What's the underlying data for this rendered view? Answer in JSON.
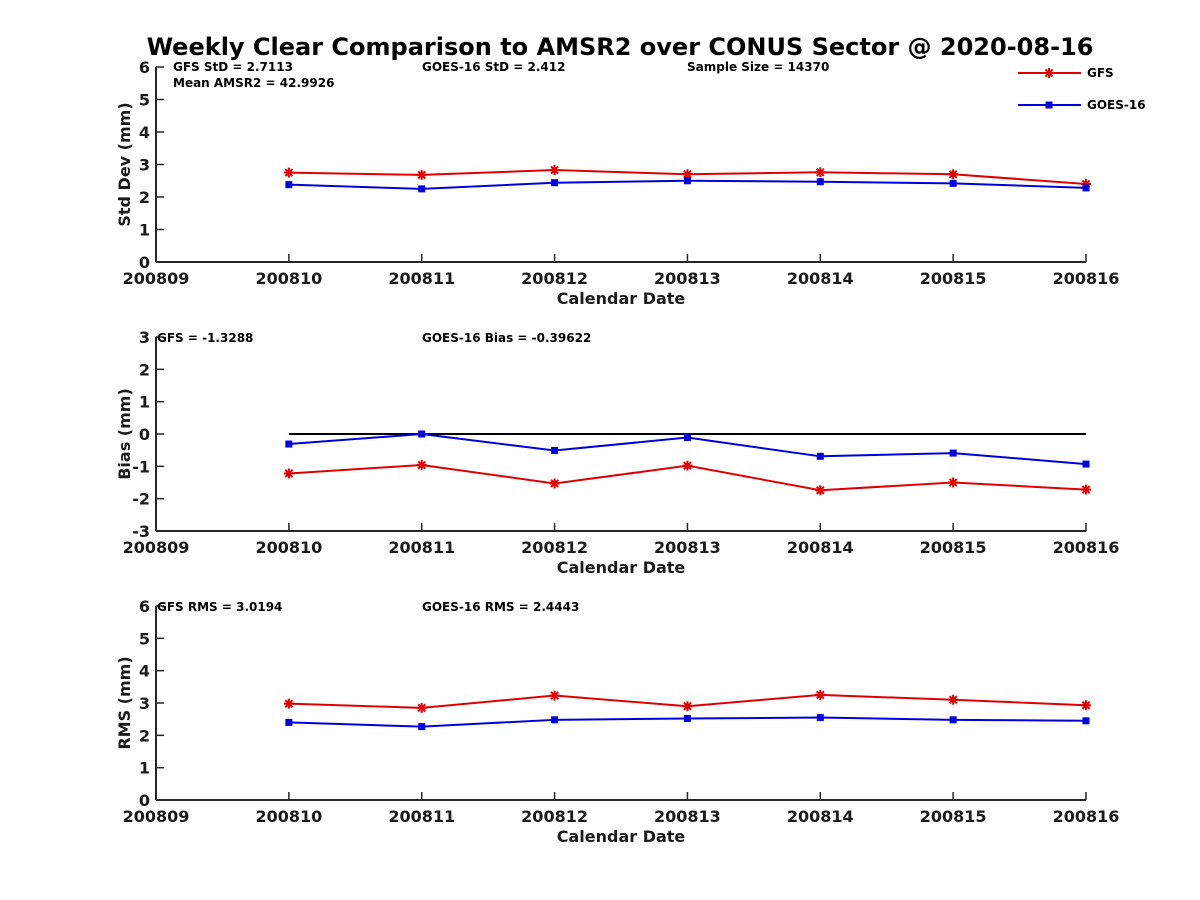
{
  "figure_title": "Weekly Clear Comparison to AMSR2 over CONUS Sector @ 2020-08-16",
  "legend": {
    "entries": [
      {
        "name": "GFS",
        "color": "#e00000",
        "marker": "asterisk"
      },
      {
        "name": "GOES-16",
        "color": "#0000dd",
        "marker": "square"
      }
    ],
    "placement": "top-right"
  },
  "chart_data": [
    {
      "type": "line",
      "ylabel": "Std Dev (mm)",
      "xlabel": "Calendar Date",
      "ylim": [
        0,
        6
      ],
      "yticks": [
        "0",
        "1",
        "2",
        "3",
        "4",
        "5",
        "6"
      ],
      "x_categories": [
        "200809",
        "200810",
        "200811",
        "200812",
        "200813",
        "200814",
        "200815",
        "200816"
      ],
      "annotations": [
        "GFS StD = 2.7113",
        "GOES-16 StD = 2.412",
        "Sample Size = 14370",
        "Mean AMSR2 = 42.9926"
      ],
      "series": [
        {
          "name": "GFS",
          "color": "#e00000",
          "marker": "asterisk",
          "x": [
            "200810",
            "200811",
            "200812",
            "200813",
            "200814",
            "200815",
            "200816"
          ],
          "values": [
            2.75,
            2.68,
            2.83,
            2.7,
            2.76,
            2.7,
            2.4
          ]
        },
        {
          "name": "GOES-16",
          "color": "#0000dd",
          "marker": "square",
          "x": [
            "200810",
            "200811",
            "200812",
            "200813",
            "200814",
            "200815",
            "200816"
          ],
          "values": [
            2.38,
            2.25,
            2.44,
            2.5,
            2.47,
            2.42,
            2.28
          ]
        }
      ]
    },
    {
      "type": "line",
      "ylabel": "Bias (mm)",
      "xlabel": "Calendar Date",
      "ylim": [
        -3,
        3
      ],
      "yticks": [
        "-3",
        "-2",
        "-1",
        "0",
        "1",
        "2",
        "3"
      ],
      "x_categories": [
        "200809",
        "200810",
        "200811",
        "200812",
        "200813",
        "200814",
        "200815",
        "200816"
      ],
      "annotations": [
        "GFS = -1.3288",
        "GOES-16 Bias  = -0.39622"
      ],
      "reference_line": {
        "y": 0,
        "color": "#000000",
        "x_from": "200810",
        "x_to": "200816"
      },
      "series": [
        {
          "name": "GFS",
          "color": "#e00000",
          "marker": "asterisk",
          "x": [
            "200810",
            "200811",
            "200812",
            "200813",
            "200814",
            "200815",
            "200816"
          ],
          "values": [
            -1.22,
            -0.96,
            -1.53,
            -0.98,
            -1.74,
            -1.5,
            -1.72
          ]
        },
        {
          "name": "GOES-16",
          "color": "#0000dd",
          "marker": "square",
          "x": [
            "200810",
            "200811",
            "200812",
            "200813",
            "200814",
            "200815",
            "200816"
          ],
          "values": [
            -0.31,
            0.0,
            -0.51,
            -0.11,
            -0.69,
            -0.59,
            -0.93
          ]
        }
      ]
    },
    {
      "type": "line",
      "ylabel": "RMS (mm)",
      "xlabel": "Calendar Date",
      "ylim": [
        0,
        6
      ],
      "yticks": [
        "0",
        "1",
        "2",
        "3",
        "4",
        "5",
        "6"
      ],
      "x_categories": [
        "200809",
        "200810",
        "200811",
        "200812",
        "200813",
        "200814",
        "200815",
        "200816"
      ],
      "annotations": [
        "GFS RMS = 3.0194",
        "GOES-16 RMS = 2.4443"
      ],
      "series": [
        {
          "name": "GFS",
          "color": "#e00000",
          "marker": "asterisk",
          "x": [
            "200810",
            "200811",
            "200812",
            "200813",
            "200814",
            "200815",
            "200816"
          ],
          "values": [
            2.98,
            2.85,
            3.23,
            2.9,
            3.25,
            3.1,
            2.93
          ]
        },
        {
          "name": "GOES-16",
          "color": "#0000dd",
          "marker": "square",
          "x": [
            "200810",
            "200811",
            "200812",
            "200813",
            "200814",
            "200815",
            "200816"
          ],
          "values": [
            2.4,
            2.27,
            2.48,
            2.52,
            2.55,
            2.48,
            2.45
          ]
        }
      ]
    }
  ]
}
